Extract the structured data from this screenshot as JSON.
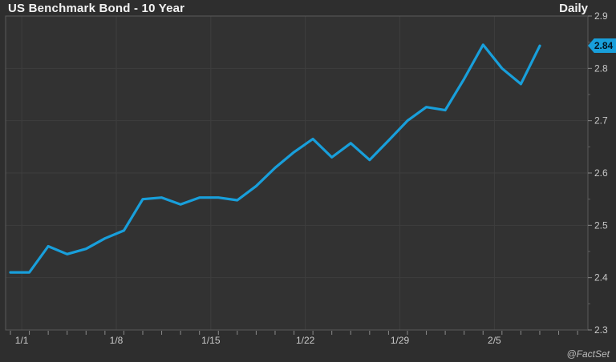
{
  "header": {
    "title": "US Benchmark Bond - 10 Year",
    "frequency": "Daily"
  },
  "footer": {
    "attribution": "@FactSet"
  },
  "colors": {
    "background": "#2e2e2e",
    "plot_background": "#323232",
    "gridline": "#3e3e3e",
    "frame": "#5a5a5a",
    "tick": "#8a8a8a",
    "axis_label": "#c9c9c9",
    "series_line": "#189fdb",
    "badge_background": "#189fdb",
    "badge_text": "#041420"
  },
  "chart_data": {
    "type": "line",
    "title": "US Benchmark Bond - 10 Year",
    "frequency_label": "Daily",
    "legend_position": "none",
    "grid": true,
    "ylim": [
      2.3,
      2.9
    ],
    "y_ticks": [
      "2.9",
      "2.8",
      "2.7",
      "2.6",
      "2.5",
      "2.4",
      "2.3"
    ],
    "y_minor_tick_step": 0.05,
    "x_tick_labels": [
      "1/1",
      "1/8",
      "1/15",
      "1/22",
      "1/29",
      "2/5"
    ],
    "x_tick_indices": [
      1,
      6,
      11,
      16,
      21,
      26
    ],
    "x": [
      "12/29",
      "1/1",
      "1/2",
      "1/3",
      "1/4",
      "1/5",
      "1/8",
      "1/9",
      "1/10",
      "1/11",
      "1/12",
      "1/15",
      "1/16",
      "1/17",
      "1/18",
      "1/19",
      "1/22",
      "1/23",
      "1/24",
      "1/25",
      "1/26",
      "1/29",
      "1/30",
      "1/31",
      "2/1",
      "2/2",
      "2/5",
      "2/6",
      "2/7"
    ],
    "values": [
      2.41,
      2.41,
      2.46,
      2.445,
      2.455,
      2.475,
      2.49,
      2.55,
      2.553,
      2.54,
      2.553,
      2.553,
      2.548,
      2.575,
      2.61,
      2.64,
      2.665,
      2.63,
      2.657,
      2.625,
      2.662,
      2.7,
      2.726,
      2.72,
      2.78,
      2.845,
      2.8,
      2.77,
      2.843
    ],
    "last_price_label": "2.84",
    "source": "@FactSet"
  }
}
